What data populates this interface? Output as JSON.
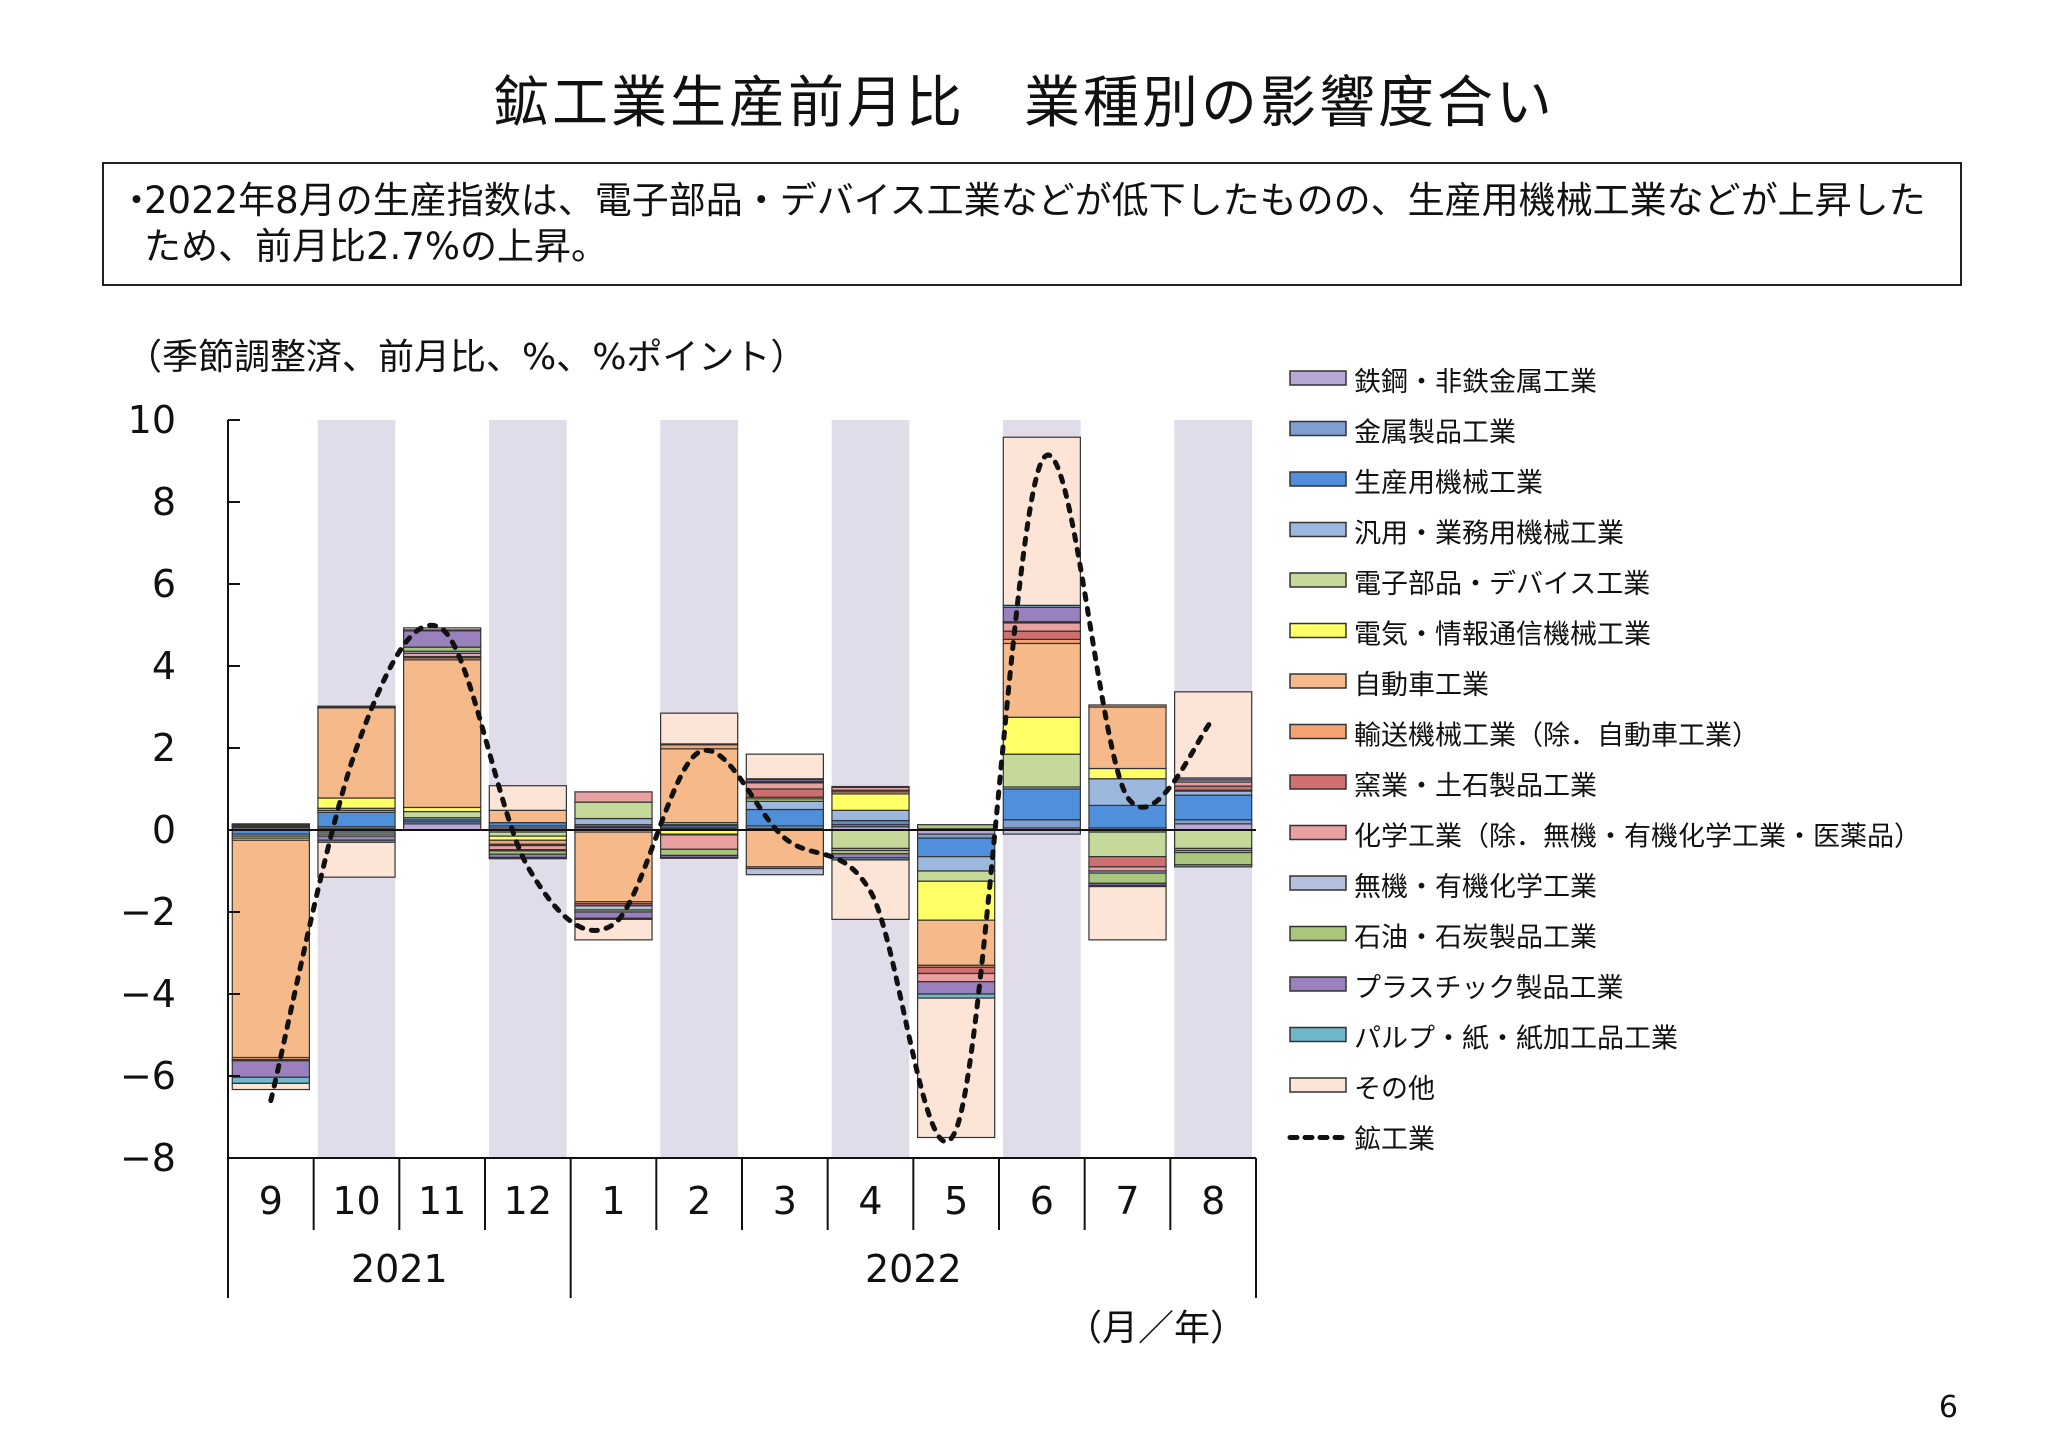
{
  "title": "鉱工業生産前月比　業種別の影響度合い",
  "summary": {
    "bullet": "・",
    "text": "2022年8月の生産指数は、電子部品・デバイス工業などが低下したものの、生産用機械工業などが上昇したため、前月比2.7%の上昇。"
  },
  "unit_label": "（季節調整済、前月比、%、%ポイント）",
  "page_number": "6",
  "chart_data": {
    "type": "bar",
    "stacked": true,
    "categories": [
      "9",
      "10",
      "11",
      "12",
      "1",
      "2",
      "3",
      "4",
      "5",
      "6",
      "7",
      "8"
    ],
    "year_groups": [
      {
        "label": "2021",
        "count": 4
      },
      {
        "label": "2022",
        "count": 8
      }
    ],
    "x_unit_label": "（月／年）",
    "ylim": [
      -8,
      10
    ],
    "yticks": [
      10,
      8,
      6,
      4,
      2,
      0,
      -2,
      -4,
      -6,
      -8
    ],
    "shaded_categories": [
      1,
      3,
      5,
      7,
      9,
      11
    ],
    "shade_color": "#e0dcea",
    "legend_position": "right",
    "series": [
      {
        "name": "鉄鋼・非鉄金属工業",
        "color": "#b9a8d6",
        "values": [
          0.05,
          0.03,
          0.15,
          0.05,
          0.05,
          0.03,
          0.04,
          0.08,
          -0.1,
          0.05,
          -0.05,
          0.15
        ]
      },
      {
        "name": "金属製品工業",
        "color": "#7f9fd0",
        "values": [
          0.03,
          0.05,
          0.05,
          0.05,
          0.03,
          0.02,
          0.06,
          0.05,
          -0.1,
          0.2,
          0.05,
          0.1
        ]
      },
      {
        "name": "生産用機械工業",
        "color": "#4f8fdc",
        "values": [
          -0.1,
          0.35,
          0.05,
          0.08,
          0.05,
          0.05,
          0.4,
          0.1,
          -0.45,
          0.75,
          0.55,
          0.6
        ]
      },
      {
        "name": "汎用・業務用機械工業",
        "color": "#9db8de",
        "values": [
          -0.05,
          0.05,
          0.05,
          -0.05,
          0.15,
          0.03,
          0.2,
          0.25,
          -0.35,
          0.05,
          0.65,
          0.1
        ]
      },
      {
        "name": "電子部品・デバイス工業",
        "color": "#c4d99a",
        "values": [
          -0.05,
          0.05,
          0.15,
          -0.1,
          0.4,
          0.05,
          0.06,
          -0.45,
          -0.25,
          0.8,
          -0.6,
          -0.45
        ]
      },
      {
        "name": "電気・情報通信機械工業",
        "color": "#ffff66",
        "values": [
          -0.05,
          0.25,
          0.1,
          -0.1,
          -0.05,
          -0.1,
          0.04,
          0.4,
          -0.95,
          0.9,
          0.25,
          0.02
        ]
      },
      {
        "name": "自動車工業",
        "color": "#f6b98a",
        "values": [
          -5.3,
          2.2,
          3.6,
          0.3,
          -1.7,
          1.8,
          -0.9,
          -0.05,
          -1.1,
          1.8,
          1.5,
          -0.05
        ]
      },
      {
        "name": "輸送機械工業（除．自動車工業）",
        "color": "#f4a472",
        "values": [
          -0.05,
          0.02,
          0.05,
          -0.1,
          -0.05,
          0.1,
          -0.04,
          0.05,
          -0.05,
          0.1,
          0.05,
          -0.05
        ]
      },
      {
        "name": "窯業・土石製品工業",
        "color": "#cf6f6f",
        "values": [
          -0.03,
          0.02,
          0.03,
          -0.03,
          -0.05,
          -0.02,
          0.2,
          0.04,
          -0.15,
          0.2,
          -0.25,
          0.1
        ]
      },
      {
        "name": "化学工業（除．無機・有機化学工業・医薬品）",
        "color": "#e8a0a0",
        "values": [
          0.03,
          -0.05,
          0.08,
          -0.1,
          0.25,
          -0.35,
          0.15,
          0.07,
          -0.2,
          0.2,
          -0.1,
          0.1
        ]
      },
      {
        "name": "無機・有機化学工業",
        "color": "#b4c0dc",
        "values": [
          0.02,
          -0.05,
          0.05,
          -0.03,
          -0.1,
          0.02,
          -0.15,
          0.02,
          0.03,
          -0.1,
          -0.05,
          0.05
        ]
      },
      {
        "name": "石油・石炭製品工業",
        "color": "#a9c77a",
        "values": [
          0.02,
          -0.05,
          0.1,
          -0.08,
          -0.05,
          -0.15,
          0.03,
          -0.08,
          0.1,
          0.03,
          -0.25,
          -0.3
        ]
      },
      {
        "name": "プラスチック製品工業",
        "color": "#9a80bd",
        "values": [
          -0.4,
          -0.1,
          0.4,
          -0.08,
          -0.15,
          -0.05,
          0.05,
          -0.1,
          -0.3,
          0.35,
          -0.05,
          0.05
        ]
      },
      {
        "name": "パルプ・紙・紙加工品工業",
        "color": "#6fb8cc",
        "values": [
          -0.15,
          -0.05,
          0.02,
          -0.03,
          -0.03,
          -0.02,
          0.02,
          -0.05,
          -0.1,
          0.05,
          -0.03,
          -0.05
        ]
      },
      {
        "name": "その他",
        "color": "#fce4d6",
        "values": [
          -0.15,
          -0.85,
          0.05,
          0.6,
          -0.5,
          0.75,
          0.6,
          -1.45,
          -3.4,
          4.1,
          -1.3,
          2.1
        ]
      }
    ],
    "line_series": {
      "name": "鉱工業",
      "style": "dotted",
      "color": "#111111",
      "values": [
        -6.6,
        2.0,
        4.9,
        -0.9,
        -2.3,
        1.9,
        -0.2,
        -1.5,
        -7.3,
        9.0,
        0.8,
        2.7
      ]
    }
  }
}
